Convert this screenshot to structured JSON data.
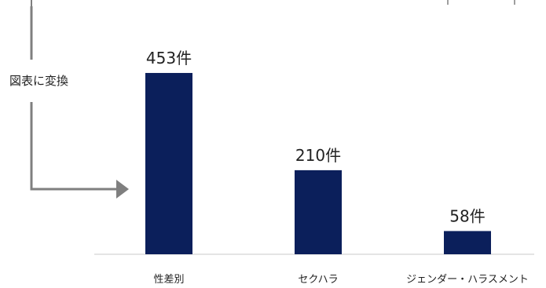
{
  "annotation": {
    "label": "図表に変換"
  },
  "colors": {
    "bar": "#0b1f5b",
    "axis": "#c8c8c8",
    "arrow": "#7f7f7f"
  },
  "chart_data": {
    "type": "bar",
    "categories": [
      "性差別",
      "セクハラ",
      "ジェンダー・ハラスメント"
    ],
    "values": [
      453,
      210,
      58
    ],
    "data_labels": [
      "453件",
      "210件",
      "58件"
    ],
    "title": "",
    "xlabel": "",
    "ylabel": "",
    "ylim": [
      0,
      500
    ],
    "grid": false,
    "legend": "none"
  }
}
